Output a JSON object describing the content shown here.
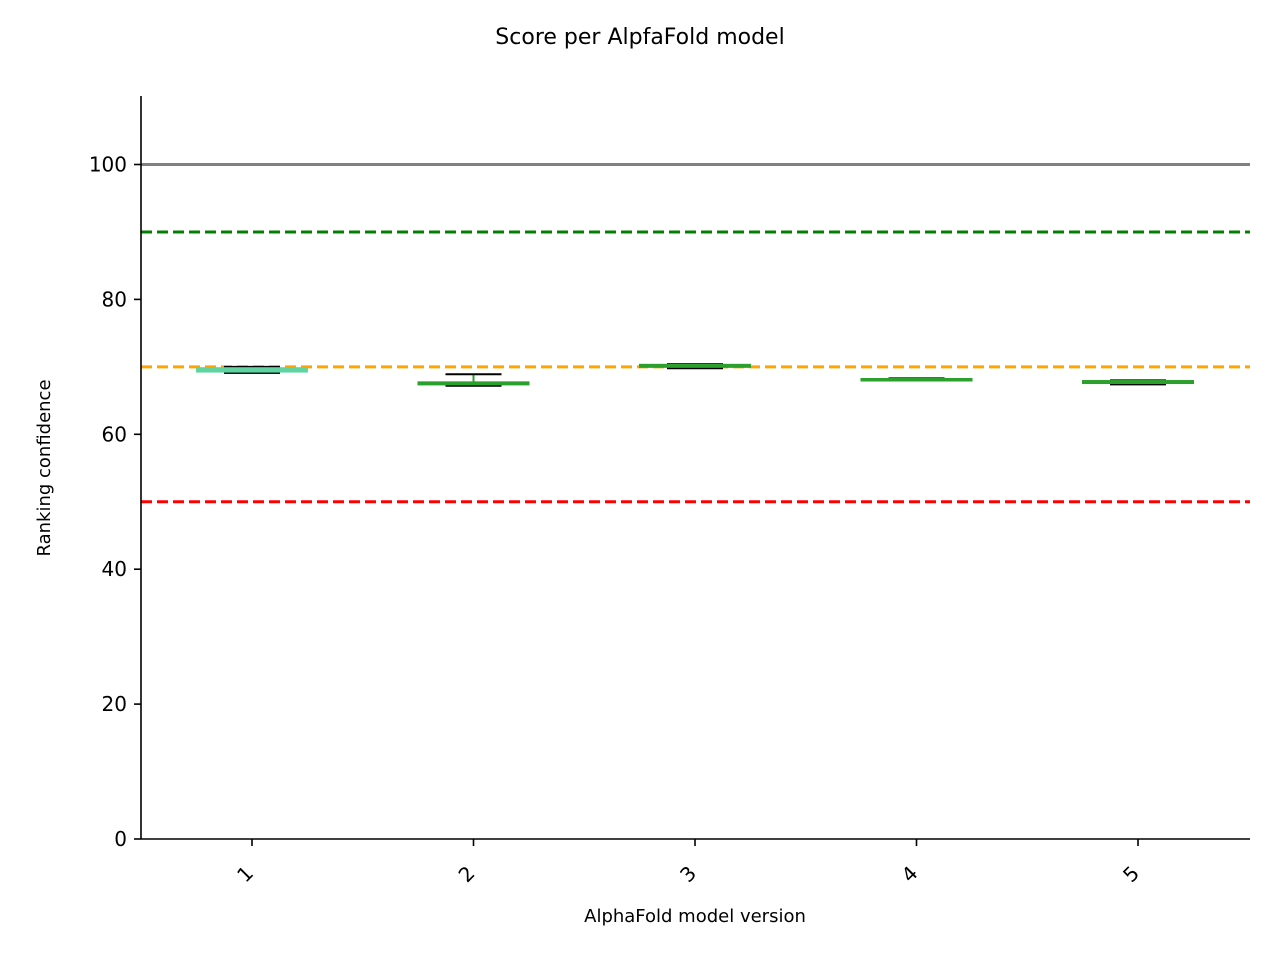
{
  "chart_data": {
    "type": "box",
    "title": "Score per AlpfaFold model",
    "xlabel": "AlphaFold model version",
    "ylabel": "Ranking confidence",
    "categories": [
      "1",
      "2",
      "3",
      "4",
      "5"
    ],
    "ylim": [
      0,
      110
    ],
    "yticks": [
      0,
      20,
      40,
      60,
      80,
      100
    ],
    "grid": false,
    "boxes": [
      {
        "category": "1",
        "min": 69.1,
        "q1": 69.3,
        "median": 69.5,
        "q3": 69.8,
        "max": 70.0,
        "color": "#5fd3a0"
      },
      {
        "category": "2",
        "min": 67.2,
        "q1": 67.4,
        "median": 67.6,
        "q3": 67.7,
        "max": 68.9,
        "color": "#2ca02c"
      },
      {
        "category": "3",
        "min": 69.8,
        "q1": 70.0,
        "median": 70.1,
        "q3": 70.3,
        "max": 70.4,
        "color": "#2ca02c"
      },
      {
        "category": "4",
        "min": 68.0,
        "q1": 68.1,
        "median": 68.1,
        "q3": 68.2,
        "max": 68.3,
        "color": "#2ca02c"
      },
      {
        "category": "5",
        "min": 67.4,
        "q1": 67.6,
        "median": 67.8,
        "q3": 67.9,
        "max": 68.0,
        "color": "#2ca02c"
      }
    ],
    "reference_lines": [
      {
        "y": 100,
        "color": "#808080",
        "style": "solid"
      },
      {
        "y": 90,
        "color": "#008000",
        "style": "dashed"
      },
      {
        "y": 70,
        "color": "#ffa500",
        "style": "dashed"
      },
      {
        "y": 50,
        "color": "#ff0000",
        "style": "dashed"
      }
    ]
  }
}
